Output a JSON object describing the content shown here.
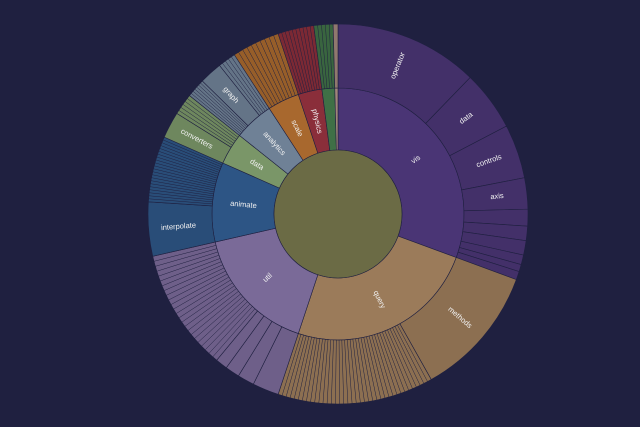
{
  "chart_data": {
    "type": "sunburst",
    "center_color": "#6b6b45",
    "background": "#1f2040",
    "children": [
      {
        "name": "vis",
        "color": "#4a3575",
        "value": 30,
        "children": [
          {
            "name": "operator",
            "value": 12,
            "leaves": 0
          },
          {
            "name": "data",
            "value": 5,
            "leaves": 0
          },
          {
            "name": "controls",
            "value": 4.5,
            "leaves": 0
          },
          {
            "name": "axis",
            "value": 2.6,
            "leaves": 0
          },
          {
            "name": "",
            "value": 1.4,
            "leaves": 0
          },
          {
            "name": "",
            "value": 1.2,
            "leaves": 0
          },
          {
            "name": "",
            "value": 1.2,
            "leaves": 0
          },
          {
            "name": "",
            "value": 0.8,
            "leaves": 0
          },
          {
            "name": "",
            "value": 0.6,
            "leaves": 0
          },
          {
            "name": "",
            "value": 0.7,
            "leaves": 0
          }
        ]
      },
      {
        "name": "query",
        "color": "#9b7b5a",
        "value": 24,
        "children": [
          {
            "name": "methods",
            "value": 11,
            "leaves": 0
          },
          {
            "name": "",
            "value": 13,
            "leaves": 38
          }
        ]
      },
      {
        "name": "util",
        "color": "#7a6a98",
        "value": 16,
        "children": [
          {
            "name": "",
            "value": 2.2,
            "leaves": 0
          },
          {
            "name": "",
            "value": 1.4,
            "leaves": 0
          },
          {
            "name": "",
            "value": 1.2,
            "leaves": 0
          },
          {
            "name": "",
            "value": 1.0,
            "leaves": 0
          },
          {
            "name": "",
            "value": 10.2,
            "leaves": 24
          }
        ]
      },
      {
        "name": "animate",
        "color": "#2d5585",
        "value": 10,
        "children": [
          {
            "name": "interpolate",
            "value": 4.5,
            "leaves": 0
          },
          {
            "name": "",
            "value": 5.5,
            "leaves": 22
          }
        ]
      },
      {
        "name": "data",
        "color": "#7a9668",
        "value": 4,
        "children": [
          {
            "name": "converters",
            "value": 2.2,
            "leaves": 0
          },
          {
            "name": "",
            "value": 1.8,
            "leaves": 6
          }
        ]
      },
      {
        "name": "analytics",
        "color": "#6f8196",
        "value": 5,
        "children": [
          {
            "name": "",
            "value": 1.6,
            "leaves": 7
          },
          {
            "name": "graph",
            "value": 1.9,
            "leaves": 0
          },
          {
            "name": "",
            "value": 1.5,
            "leaves": 5
          }
        ]
      },
      {
        "name": "scale",
        "color": "#a8682e",
        "value": 4,
        "children": [
          {
            "name": "",
            "value": 4,
            "leaves": 10
          }
        ]
      },
      {
        "name": "physics",
        "color": "#8a2e3a",
        "value": 3,
        "children": [
          {
            "name": "",
            "value": 3,
            "leaves": 10
          }
        ]
      },
      {
        "name": "",
        "color": "#3f7046",
        "value": 1.6,
        "children": [
          {
            "name": "",
            "value": 1.6,
            "leaves": 5
          }
        ]
      },
      {
        "name": "",
        "color": "#a0857a",
        "value": 0.4,
        "children": [
          {
            "name": "",
            "value": 0.4,
            "leaves": 0
          }
        ]
      }
    ]
  }
}
